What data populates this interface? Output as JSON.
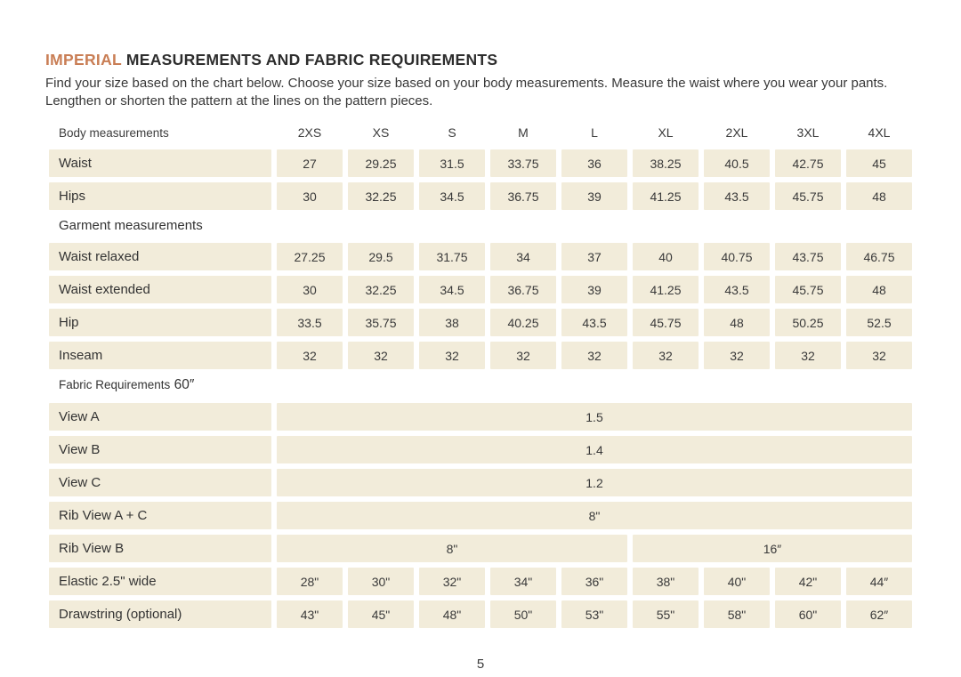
{
  "header": {
    "title_accent": "IMPERIAL",
    "title_rest": " MEASUREMENTS AND FABRIC REQUIREMENTS",
    "description": "Find your size based on the chart below. Choose your size based on your body measurements. Measure the waist where you wear your pants. Lengthen or shorten the pattern at the lines on the pattern pieces."
  },
  "table": {
    "sizes": [
      "2XS",
      "XS",
      "S",
      "M",
      "L",
      "XL",
      "2XL",
      "3XL",
      "4XL"
    ],
    "sections": [
      {
        "id": "body",
        "label": "Body measurements",
        "with_sizes": true,
        "rows": [
          {
            "label": "Waist",
            "values": [
              "27",
              "29.25",
              "31.5",
              "33.75",
              "36",
              "38.25",
              "40.5",
              "42.75",
              "45"
            ]
          },
          {
            "label": "Hips",
            "values": [
              "30",
              "32.25",
              "34.5",
              "36.75",
              "39",
              "41.25",
              "43.5",
              "45.75",
              "48"
            ]
          }
        ]
      },
      {
        "id": "garment",
        "label": "Garment measurements",
        "with_sizes": false,
        "rows": [
          {
            "label": "Waist relaxed",
            "values": [
              "27.25",
              "29.5",
              "31.75",
              "34",
              "37",
              "40",
              "40.75",
              "43.75",
              "46.75"
            ]
          },
          {
            "label": "Waist extended",
            "values": [
              "30",
              "32.25",
              "34.5",
              "36.75",
              "39",
              "41.25",
              "43.5",
              "45.75",
              "48"
            ]
          },
          {
            "label": "Hip",
            "values": [
              "33.5",
              "35.75",
              "38",
              "40.25",
              "43.5",
              "45.75",
              "48",
              "50.25",
              "52.5"
            ]
          },
          {
            "label": "Inseam",
            "values": [
              "32",
              "32",
              "32",
              "32",
              "32",
              "32",
              "32",
              "32",
              "32"
            ]
          }
        ]
      },
      {
        "id": "fabric",
        "label": "Fabric Requirements",
        "label_note": "60″",
        "with_sizes": false,
        "rows": [
          {
            "label": "View A",
            "spans": [
              {
                "cols": 9,
                "value": "1.5"
              }
            ]
          },
          {
            "label": "View B",
            "spans": [
              {
                "cols": 9,
                "value": "1.4"
              }
            ]
          },
          {
            "label": "View C",
            "spans": [
              {
                "cols": 9,
                "value": "1.2"
              }
            ]
          },
          {
            "label": "Rib View A + C",
            "spans": [
              {
                "cols": 9,
                "value": "8\""
              }
            ]
          },
          {
            "label": "Rib View B",
            "spans": [
              {
                "cols": 5,
                "value": "8\""
              },
              {
                "cols": 4,
                "value": "16″"
              }
            ]
          },
          {
            "label": "Elastic 2.5\" wide",
            "values": [
              "28\"",
              "30\"",
              "32\"",
              "34\"",
              "36\"",
              "38\"",
              "40\"",
              "42\"",
              "44″"
            ]
          },
          {
            "label": "Drawstring (optional)",
            "values": [
              "43\"",
              "45\"",
              "48\"",
              "50\"",
              "53\"",
              "55\"",
              "58\"",
              "60\"",
              "62″"
            ]
          }
        ]
      }
    ]
  },
  "footer": {
    "page_number": "5"
  },
  "colors": {
    "cell_bg": "#f2ecda",
    "accent": "#c97e55",
    "text": "#343434"
  }
}
